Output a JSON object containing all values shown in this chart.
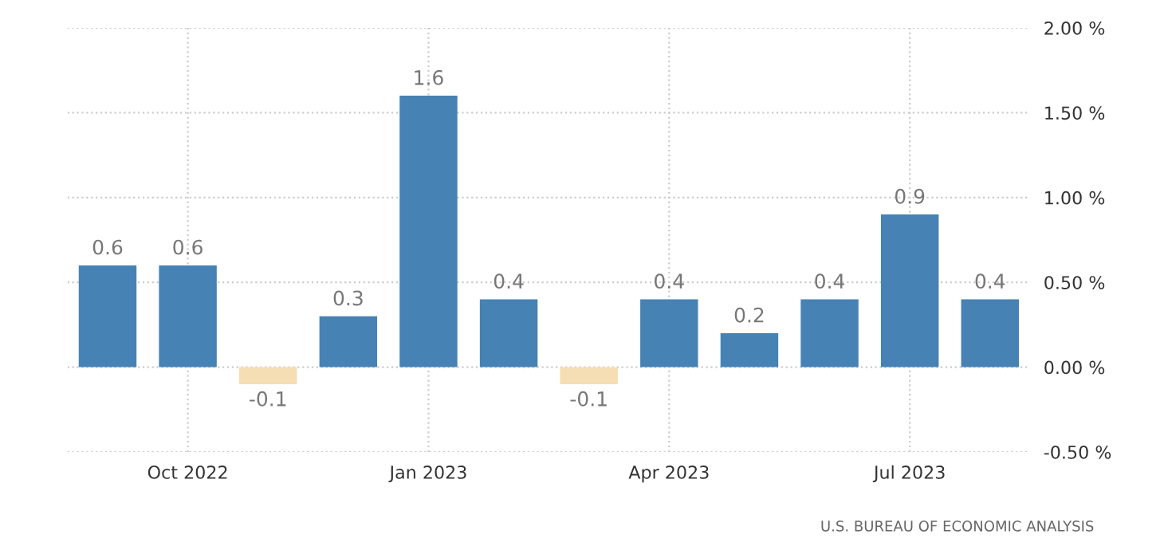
{
  "chart_data": {
    "type": "bar",
    "categories": [
      null,
      "Oct 2022",
      null,
      null,
      "Jan 2023",
      null,
      null,
      "Apr 2023",
      null,
      null,
      "Jul 2023",
      null
    ],
    "values": [
      0.6,
      0.6,
      -0.1,
      0.3,
      1.6,
      0.4,
      -0.1,
      0.4,
      0.2,
      0.4,
      0.9,
      0.4
    ],
    "colors": [
      "#4682b4",
      "#4682b4",
      "#f5deb3",
      "#4682b4",
      "#4682b4",
      "#4682b4",
      "#f5deb3",
      "#4682b4",
      "#4682b4",
      "#4682b4",
      "#4682b4",
      "#4682b4"
    ],
    "data_labels": true,
    "ylim": [
      -0.5,
      2.0
    ],
    "yticks": [
      {
        "value": -0.5,
        "label": "-0.50 %"
      },
      {
        "value": 0,
        "label": "0.00 %"
      },
      {
        "value": 0.5,
        "label": "0.50 %"
      },
      {
        "value": 1.0,
        "label": "1.00 %"
      },
      {
        "value": 1.5,
        "label": "1.50 %"
      },
      {
        "value": 2.0,
        "label": "2.00 %"
      }
    ],
    "grid": true,
    "annotations": [
      "U.S. BUREAU OF ECONOMIC ANALYSIS"
    ]
  }
}
